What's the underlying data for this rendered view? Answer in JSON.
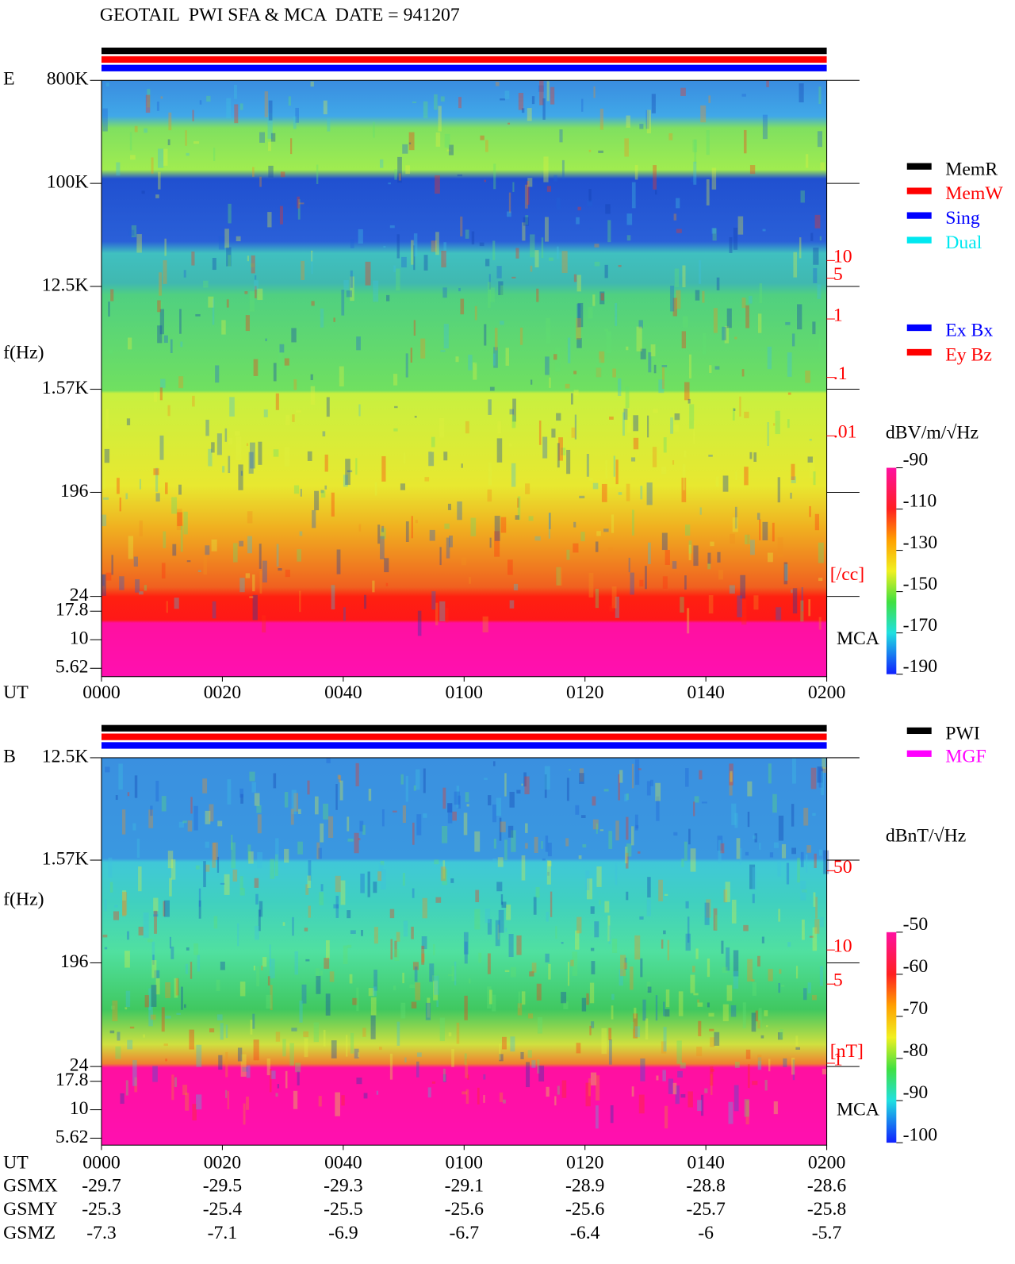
{
  "title": "GEOTAIL  PWI SFA & MCA  DATE = 941207",
  "chart_data": [
    {
      "type": "spectrogram",
      "panel_label": "E",
      "ylabel": "f(Hz)",
      "xlabel": "UT",
      "log_y": true,
      "ylim": [
        4.75,
        800000
      ],
      "yticks": [
        {
          "value": 800000,
          "label": "800K"
        },
        {
          "value": 100000,
          "label": "100K"
        },
        {
          "value": 12500,
          "label": "12.5K"
        },
        {
          "value": 1570,
          "label": "1.57K"
        },
        196,
        24,
        17.8,
        10,
        5.62
      ],
      "xlim": [
        0,
        120
      ],
      "xticks": [
        {
          "value": 0,
          "label": "0000"
        },
        {
          "value": 20,
          "label": "0020"
        },
        {
          "value": 40,
          "label": "0040"
        },
        {
          "value": 60,
          "label": "0100"
        },
        {
          "value": 80,
          "label": "0120"
        },
        {
          "value": 100,
          "label": "0140"
        },
        {
          "value": 120,
          "label": "0200"
        }
      ],
      "band_label": "MCA",
      "y2lim": [
        0.01,
        10
      ],
      "y2ticks": [
        10,
        5,
        1,
        {
          "value": 0.1,
          "label": ".1"
        },
        {
          "value": 0.01,
          "label": ".01"
        }
      ],
      "y2label": "[/cc]",
      "colorbar": {
        "label": "dBV/m/√Hz",
        "clim": [
          -190,
          -90
        ],
        "ticks": [
          -90,
          -110,
          -130,
          -150,
          -170,
          -190
        ]
      },
      "legend": [
        {
          "name": "MemR",
          "color": "#000000"
        },
        {
          "name": "MemW",
          "color": "#ff0000"
        },
        {
          "name": "Sing",
          "color": "#0000ff"
        },
        {
          "name": "Dual",
          "color": "#00e8f0"
        }
      ],
      "legend2": [
        {
          "name": "Ex Bx",
          "color": "#0000ff"
        },
        {
          "name": "Ey Bz",
          "color": "#ff0000"
        }
      ]
    },
    {
      "type": "spectrogram",
      "panel_label": "B",
      "ylabel": "f(Hz)",
      "xlabel": "UT",
      "log_y": true,
      "ylim": [
        4.88,
        12500
      ],
      "yticks": [
        {
          "value": 12500,
          "label": "12.5K"
        },
        {
          "value": 1570,
          "label": "1.57K"
        },
        196,
        24,
        17.8,
        10,
        5.62
      ],
      "xlim": [
        0,
        120
      ],
      "xticks": [
        {
          "value": 0,
          "label": "0000"
        },
        {
          "value": 20,
          "label": "0020"
        },
        {
          "value": 40,
          "label": "0040"
        },
        {
          "value": 60,
          "label": "0100"
        },
        {
          "value": 80,
          "label": "0120"
        },
        {
          "value": 100,
          "label": "0140"
        },
        {
          "value": 120,
          "label": "0200"
        }
      ],
      "band_label": "MCA",
      "y2lim": [
        1,
        50
      ],
      "y2ticks": [
        50,
        10,
        5,
        1
      ],
      "y2label": "[nT]",
      "colorbar": {
        "label": "dBnT/√Hz",
        "clim": [
          -100,
          -50
        ],
        "ticks": [
          -50,
          -60,
          -70,
          -80,
          -90,
          -100
        ]
      },
      "legend": [
        {
          "name": "PWI",
          "color": "#000000"
        },
        {
          "name": "MGF",
          "color": "#ff00ff"
        }
      ]
    }
  ],
  "orbit": {
    "rows": [
      {
        "name": "GSMX",
        "values": [
          -29.7,
          -29.5,
          -29.3,
          -29.1,
          -28.9,
          -28.8,
          -28.6
        ]
      },
      {
        "name": "GSMY",
        "values": [
          -25.3,
          -25.4,
          -25.5,
          -25.6,
          -25.6,
          -25.7,
          -25.8
        ]
      },
      {
        "name": "GSMZ",
        "values": [
          -7.3,
          -7.1,
          -6.9,
          -6.7,
          -6.4,
          -6.0,
          -5.7
        ]
      }
    ]
  }
}
